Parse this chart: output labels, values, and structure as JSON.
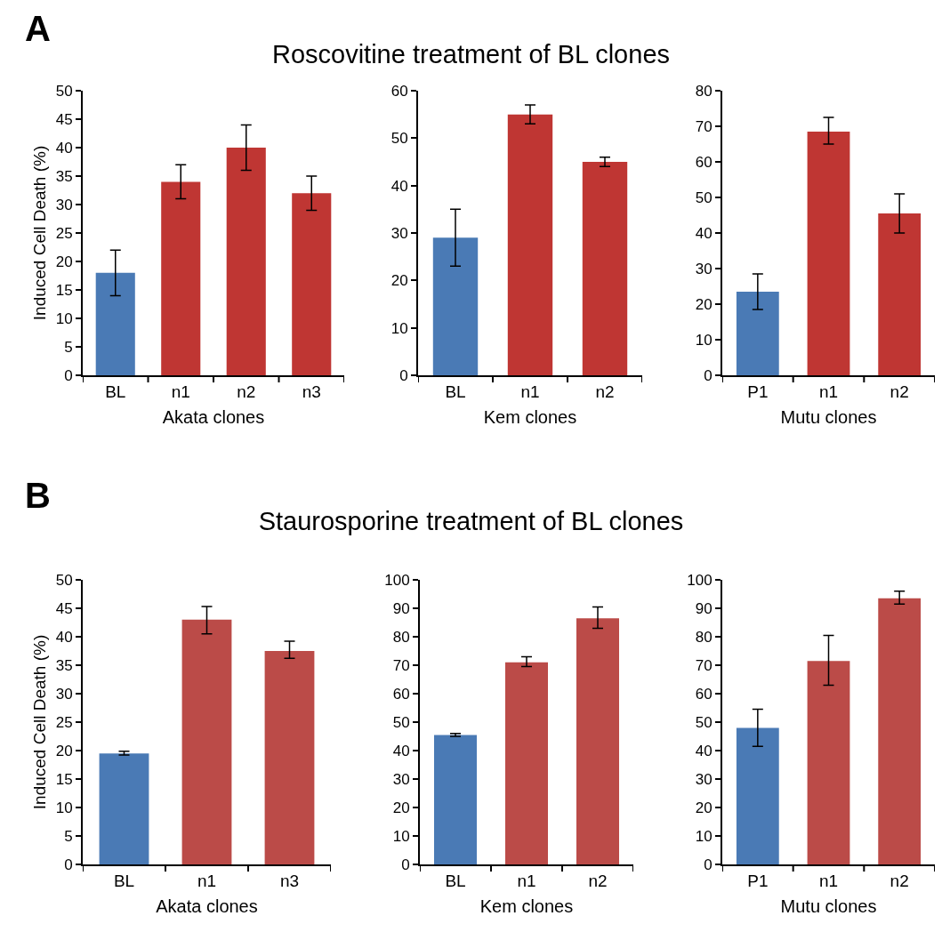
{
  "chart_data": [
    {
      "type": "bar",
      "title": "Roscovitine treatment of BL clones",
      "annotations": [
        "A"
      ],
      "ylabel": "Induced Cell Death (%)",
      "xlabel": "Akata clones",
      "categories": [
        "BL",
        "n1",
        "n2",
        "n3"
      ],
      "values": [
        18,
        34,
        40,
        32
      ],
      "colors": [
        "#4a7ab5",
        "#bf3633",
        "#bf3633",
        "#bf3633"
      ],
      "errors": [
        [
          14,
          22
        ],
        [
          31,
          37
        ],
        [
          36,
          44
        ],
        [
          29,
          35
        ]
      ],
      "ylim": [
        0,
        50
      ],
      "yticks": [
        0,
        5,
        10,
        15,
        20,
        25,
        30,
        35,
        40,
        45,
        50
      ]
    },
    {
      "type": "bar",
      "xlabel": "Kem clones",
      "categories": [
        "BL",
        "n1",
        "n2"
      ],
      "values": [
        29,
        55,
        45
      ],
      "colors": [
        "#4a7ab5",
        "#bf3633",
        "#bf3633"
      ],
      "errors": [
        [
          23,
          35
        ],
        [
          53,
          57
        ],
        [
          44,
          46
        ]
      ],
      "ylim": [
        0,
        60
      ],
      "yticks": [
        0,
        10,
        20,
        30,
        40,
        50,
        60
      ]
    },
    {
      "type": "bar",
      "xlabel": "Mutu clones",
      "categories": [
        "P1",
        "n1",
        "n2"
      ],
      "values": [
        23.5,
        68.5,
        45.5
      ],
      "colors": [
        "#4a7ab5",
        "#bf3633",
        "#bf3633"
      ],
      "errors": [
        [
          18.5,
          28.5
        ],
        [
          65,
          72.5
        ],
        [
          40,
          51
        ]
      ],
      "ylim": [
        0,
        80
      ],
      "yticks": [
        0,
        10,
        20,
        30,
        40,
        50,
        60,
        70,
        80
      ]
    },
    {
      "type": "bar",
      "title": "Staurosporine treatment of BL clones",
      "annotations": [
        "B"
      ],
      "ylabel": "Induced Cell Death (%)",
      "xlabel": "Akata clones",
      "categories": [
        "BL",
        "n1",
        "n3"
      ],
      "values": [
        19.5,
        43,
        37.5
      ],
      "colors": [
        "#4a7ab5",
        "#bb4b48",
        "#bb4b48"
      ],
      "errors": [
        [
          19.2,
          19.9
        ],
        [
          40.5,
          45.3
        ],
        [
          36.2,
          39.2
        ]
      ],
      "ylim": [
        0,
        50
      ],
      "yticks": [
        0,
        5,
        10,
        15,
        20,
        25,
        30,
        35,
        40,
        45,
        50
      ]
    },
    {
      "type": "bar",
      "xlabel": "Kem clones",
      "categories": [
        "BL",
        "n1",
        "n2"
      ],
      "values": [
        45.5,
        71,
        86.5
      ],
      "colors": [
        "#4a7ab5",
        "#bb4b48",
        "#bb4b48"
      ],
      "errors": [
        [
          45,
          46
        ],
        [
          69.5,
          73
        ],
        [
          83,
          90.5
        ]
      ],
      "ylim": [
        0,
        100
      ],
      "yticks": [
        0,
        10,
        20,
        30,
        40,
        50,
        60,
        70,
        80,
        90,
        100
      ]
    },
    {
      "type": "bar",
      "xlabel": "Mutu clones",
      "categories": [
        "P1",
        "n1",
        "n2"
      ],
      "values": [
        48,
        71.5,
        93.5
      ],
      "colors": [
        "#4a7ab5",
        "#bb4b48",
        "#bb4b48"
      ],
      "errors": [
        [
          41.5,
          54.5
        ],
        [
          63,
          80.5
        ],
        [
          91.5,
          96
        ]
      ],
      "ylim": [
        0,
        100
      ],
      "yticks": [
        0,
        10,
        20,
        30,
        40,
        50,
        60,
        70,
        80,
        90,
        100
      ]
    }
  ]
}
